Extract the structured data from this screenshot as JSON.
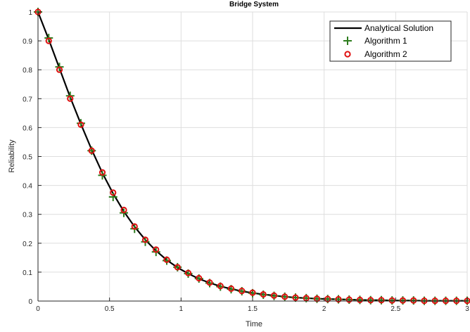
{
  "chart_data": {
    "type": "line",
    "title": "Bridge System",
    "xlabel": "Time",
    "ylabel": "Reliability",
    "xlim": [
      0,
      3
    ],
    "ylim": [
      0,
      1
    ],
    "xticks": [
      0,
      0.5,
      1,
      1.5,
      2,
      2.5,
      3
    ],
    "xtick_labels": [
      "0",
      "0.5",
      "1",
      "1.5",
      "2",
      "2.5",
      "3"
    ],
    "yticks": [
      0,
      0.1,
      0.2,
      0.3,
      0.4,
      0.5,
      0.6,
      0.7,
      0.8,
      0.9,
      1
    ],
    "ytick_labels": [
      "0",
      "0.1",
      "0.2",
      "0.3",
      "0.4",
      "0.5",
      "0.6",
      "0.7",
      "0.8",
      "0.9",
      "1"
    ],
    "grid": true,
    "legend_position": "top-right",
    "colors": {
      "analytical": "#000000",
      "algo1": "#2e7d1e",
      "algo2": "#e01010",
      "grid": "#dedede",
      "axis": "#262626"
    },
    "series": [
      {
        "name": "Analytical Solution",
        "style": "line",
        "x": [
          0,
          0.075,
          0.15,
          0.225,
          0.3,
          0.375,
          0.45,
          0.525,
          0.6,
          0.675,
          0.75,
          0.825,
          0.9,
          0.975,
          1.05,
          1.125,
          1.2,
          1.275,
          1.35,
          1.425,
          1.5,
          1.575,
          1.65,
          1.725,
          1.8,
          1.875,
          1.95,
          2.025,
          2.1,
          2.175,
          2.25,
          2.325,
          2.4,
          2.475,
          2.55,
          2.625,
          2.7,
          2.775,
          2.85,
          2.925,
          3.0
        ],
        "y": [
          1.0,
          0.905,
          0.805,
          0.705,
          0.612,
          0.524,
          0.443,
          0.372,
          0.31,
          0.257,
          0.212,
          0.174,
          0.142,
          0.116,
          0.095,
          0.077,
          0.063,
          0.051,
          0.042,
          0.034,
          0.028,
          0.023,
          0.019,
          0.015,
          0.012,
          0.01,
          0.008,
          0.007,
          0.006,
          0.005,
          0.004,
          0.003,
          0.003,
          0.002,
          0.002,
          0.002,
          0.001,
          0.001,
          0.001,
          0.001,
          0.001
        ]
      },
      {
        "name": "Algorithm 1",
        "style": "plus",
        "x": [
          0,
          0.075,
          0.15,
          0.225,
          0.3,
          0.375,
          0.45,
          0.525,
          0.6,
          0.675,
          0.75,
          0.825,
          0.9,
          0.975,
          1.05,
          1.125,
          1.2,
          1.275,
          1.35,
          1.425,
          1.5,
          1.575,
          1.65,
          1.725,
          1.8,
          1.875,
          1.95,
          2.025,
          2.1,
          2.175,
          2.25,
          2.325,
          2.4,
          2.475,
          2.55,
          2.625,
          2.7,
          2.775,
          2.85,
          2.925,
          3.0
        ],
        "y": [
          1.0,
          0.91,
          0.81,
          0.71,
          0.615,
          0.52,
          0.435,
          0.36,
          0.305,
          0.25,
          0.205,
          0.17,
          0.14,
          0.117,
          0.095,
          0.078,
          0.062,
          0.05,
          0.041,
          0.034,
          0.027,
          0.022,
          0.018,
          0.015,
          0.012,
          0.01,
          0.008,
          0.007,
          0.006,
          0.005,
          0.004,
          0.003,
          0.003,
          0.002,
          0.002,
          0.002,
          0.001,
          0.001,
          0.001,
          0.001,
          0.001
        ]
      },
      {
        "name": "Algorithm 2",
        "style": "circle",
        "x": [
          0,
          0.075,
          0.15,
          0.225,
          0.3,
          0.375,
          0.45,
          0.525,
          0.6,
          0.675,
          0.75,
          0.825,
          0.9,
          0.975,
          1.05,
          1.125,
          1.2,
          1.275,
          1.35,
          1.425,
          1.5,
          1.575,
          1.65,
          1.725,
          1.8,
          1.875,
          1.95,
          2.025,
          2.1,
          2.175,
          2.25,
          2.325,
          2.4,
          2.475,
          2.55,
          2.625,
          2.7,
          2.775,
          2.85,
          2.925,
          3.0
        ],
        "y": [
          1.0,
          0.9,
          0.8,
          0.7,
          0.61,
          0.52,
          0.445,
          0.375,
          0.315,
          0.258,
          0.212,
          0.178,
          0.143,
          0.117,
          0.097,
          0.079,
          0.064,
          0.052,
          0.043,
          0.035,
          0.029,
          0.023,
          0.019,
          0.015,
          0.012,
          0.01,
          0.008,
          0.007,
          0.006,
          0.005,
          0.004,
          0.003,
          0.003,
          0.002,
          0.002,
          0.002,
          0.001,
          0.001,
          0.001,
          0.001,
          0.001
        ]
      }
    ]
  }
}
